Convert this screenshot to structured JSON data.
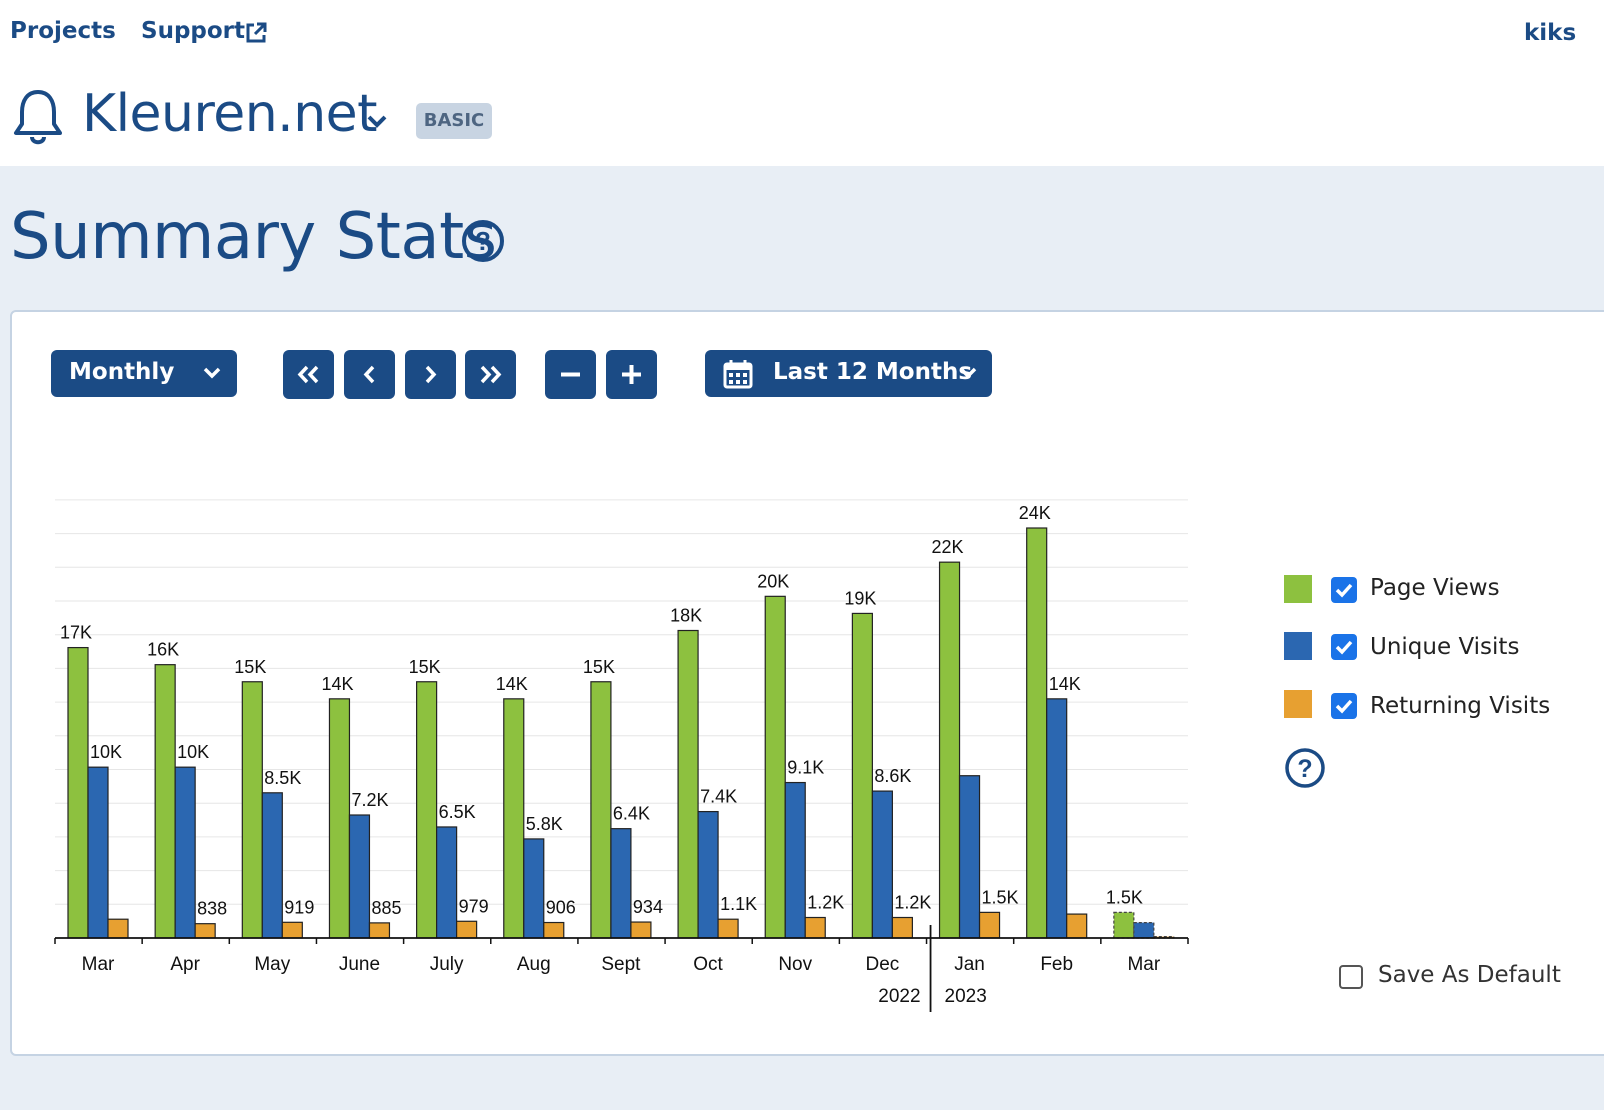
{
  "nav": {
    "projects": "Projects",
    "support": "Support",
    "user": "kiks"
  },
  "project": {
    "name": "Kleuren.net",
    "badge": "BASIC"
  },
  "page_title": "Summary Stats",
  "toolbar": {
    "interval": "Monthly",
    "range": "Last 12 Months"
  },
  "legend": {
    "items": [
      {
        "label": "Page Views",
        "color": "#8dc13f",
        "checked": true
      },
      {
        "label": "Unique Visits",
        "color": "#2b67b1",
        "checked": true
      },
      {
        "label": "Returning Visits",
        "color": "#e7a031",
        "checked": true
      }
    ]
  },
  "save_default": {
    "label": "Save As Default",
    "checked": false
  },
  "colors": {
    "accent": "#1b4b85",
    "page_bg": "#e8eef5"
  },
  "chart_data": {
    "type": "bar",
    "categories": [
      "Mar",
      "Apr",
      "May",
      "June",
      "July",
      "Aug",
      "Sept",
      "Oct",
      "Nov",
      "Dec",
      "Jan",
      "Feb",
      "Mar"
    ],
    "year_labels": [
      "2022",
      "2023"
    ],
    "series": [
      {
        "name": "Page Views",
        "values": [
          17000,
          16000,
          15000,
          14000,
          15000,
          14000,
          15000,
          18000,
          20000,
          19000,
          22000,
          24000,
          1500
        ],
        "labels": [
          "17K",
          "16K",
          "15K",
          "14K",
          "15K",
          "14K",
          "15K",
          "18K",
          "20K",
          "19K",
          "22K",
          "24K",
          "1.5K"
        ]
      },
      {
        "name": "Unique Visits",
        "values": [
          10000,
          10000,
          8500,
          7200,
          6500,
          5800,
          6400,
          7400,
          9100,
          8600,
          9500,
          14000,
          900
        ],
        "labels": [
          "10K",
          "10K",
          "8.5K",
          "7.2K",
          "6.5K",
          "5.8K",
          "6.4K",
          "7.4K",
          "9.1K",
          "8.6K",
          "",
          "14K",
          ""
        ]
      },
      {
        "name": "Returning Visits",
        "values": [
          1100,
          838,
          919,
          885,
          979,
          906,
          934,
          1100,
          1200,
          1200,
          1500,
          1400,
          80
        ],
        "labels": [
          "",
          "838",
          "919",
          "885",
          "979",
          "906",
          "934",
          "1.1K",
          "1.2K",
          "1.2K",
          "1.5K",
          "",
          ""
        ]
      }
    ],
    "partial_last_period": true,
    "ylim": [
      0,
      26000
    ],
    "grid": true,
    "legend_position": "right"
  }
}
